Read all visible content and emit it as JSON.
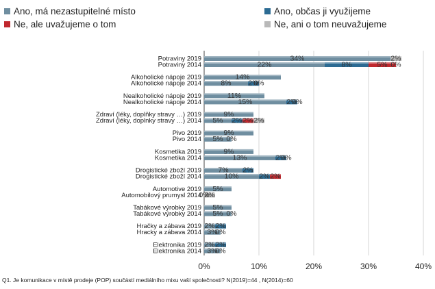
{
  "legend": [
    {
      "label": "Ano, má nezastupitelné místo",
      "color": "#6f8ea0"
    },
    {
      "label": "Ano, občas ji využijeme",
      "color": "#2c6b93"
    },
    {
      "label": "Ne, ale uvažujeme o tom",
      "color": "#c0282e"
    },
    {
      "label": "Ne, ani o tom neuvažujeme",
      "color": "#b9b9b9"
    }
  ],
  "footnote": "Q1. Je komunikace v místě prodeje (POP) součástí mediálního mixu vaší společnosti? N(2019)=44 , N(2014)=60",
  "chart_data": {
    "type": "bar",
    "orientation": "horizontal",
    "stacked": true,
    "xlim": [
      0,
      40
    ],
    "ticks": [
      "0%",
      "10%",
      "20%",
      "30%",
      "40%"
    ],
    "grid": "vertical",
    "legend_position": "top",
    "categories": [
      "Potraviny 2019",
      "Potraviny 2014",
      "Alkoholické nápoje 2019",
      "Alkoholické nápoje 2014",
      "Nealkoholické nápoje 2019",
      "Nealkoholické nápoje 2014",
      "Zdraví (léky, doplňky stravy …) 2019",
      "Zdraví (léky, doplnky stravy …) 2014",
      "Pivo 2019",
      "Pivo 2014",
      "Kosmetika 2019",
      "Kosmetika 2014",
      "Drogistické zboží 2019",
      "Drogistické zboží 2014",
      "Automotive 2019",
      "Automobilový prumysl 2014",
      "Tabákové výrobky 2019",
      "Tabákové výrobky 2014",
      "Hračky a zábava 2019",
      "Hracky a zábava 2014",
      "Elektronika 2019",
      "Elektronika 2014"
    ],
    "series": [
      {
        "name": "Ano, má nezastupitelné místo",
        "color": "#6f8ea0",
        "values": [
          34,
          22,
          14,
          8,
          11,
          15,
          9,
          5,
          9,
          5,
          9,
          13,
          7,
          10,
          5,
          0,
          5,
          5,
          2,
          3,
          2,
          3
        ],
        "labels": [
          "34%",
          "22%",
          "14%",
          "8%",
          "11%",
          "15%",
          "9%",
          "5%",
          "9%",
          "5%",
          "9%",
          "13%",
          "7%",
          "10%",
          "5%",
          "0%",
          "5%",
          "5%",
          "2%",
          "3%",
          "2%",
          "3%"
        ]
      },
      {
        "name": "Ano, občas ji využijeme",
        "color": "#2c6b93",
        "values": [
          0,
          8,
          0,
          2,
          0,
          2,
          0,
          2,
          0,
          0,
          0,
          2,
          2,
          2,
          0,
          0,
          0,
          0,
          2,
          0,
          2,
          0
        ],
        "labels": [
          "",
          "8%",
          "",
          "2%",
          "",
          "2%",
          "",
          "2%",
          "",
          "",
          "",
          "2%",
          "2%",
          "2%",
          "",
          "",
          "",
          "",
          "2%",
          "",
          "2%",
          ""
        ]
      },
      {
        "name": "Ne, ale uvažujeme o tom",
        "color": "#c0282e",
        "values": [
          0,
          5,
          0,
          0,
          0,
          0,
          0,
          2,
          0,
          0,
          0,
          0,
          0,
          2,
          0,
          0,
          0,
          0,
          0,
          0,
          0,
          0
        ],
        "labels": [
          "",
          "5%",
          "",
          "",
          "",
          "",
          "",
          "2%",
          "",
          "",
          "",
          "",
          "",
          "2%",
          "",
          "",
          "",
          "",
          "",
          "",
          "",
          ""
        ]
      },
      {
        "name": "Ne, ani o tom neuvažujeme",
        "color": "#b9b9b9",
        "values": [
          2,
          0,
          0,
          0,
          0,
          0,
          0,
          2,
          0,
          0,
          0,
          0,
          0,
          0,
          0,
          2,
          0,
          0,
          0,
          0,
          0,
          0
        ],
        "labels": [
          "2%",
          "0%",
          "",
          "0%",
          "",
          "0%",
          "",
          "2%",
          "",
          "0%",
          "",
          "0%",
          "",
          "",
          "",
          "2%",
          "",
          "0%",
          "",
          "0%",
          "",
          "0%"
        ]
      }
    ]
  }
}
